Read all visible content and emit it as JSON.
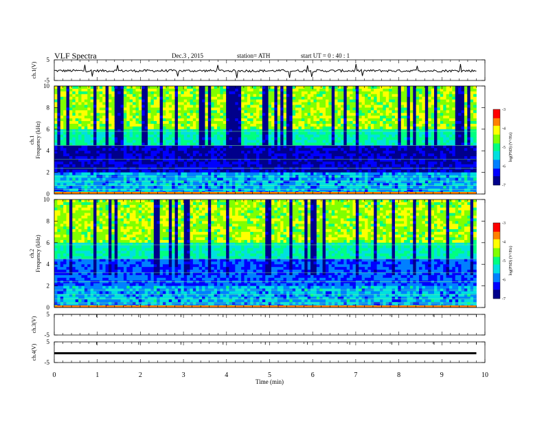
{
  "header": {
    "title": "VLF  Spectra",
    "date": "Dec.3  , 2015",
    "station": "station= ATH",
    "start": "start  UT  =   0 : 40 : 1"
  },
  "chart_data": [
    {
      "type": "line",
      "panel": "ch1-waveform",
      "ylabel": "ch.1(V)",
      "ylim": [
        -5,
        5
      ],
      "yticks": [
        "5",
        "-5"
      ],
      "series": [
        {
          "name": "",
          "x": [
            0,
            9.8
          ],
          "values": [
            -0.3,
            -0.3
          ]
        }
      ],
      "line_color": "#000000"
    },
    {
      "type": "heatmap",
      "panel": "ch1-spectrogram",
      "ylabel": "ch.1\nFrequency (kHz)",
      "ylim": [
        0,
        10
      ],
      "yticks": [
        "0",
        "2",
        "4",
        "6",
        "8",
        "10"
      ],
      "xlim": [
        0,
        9.8
      ],
      "colorbar": {
        "label": "log(PSD) (V²/Hz)",
        "ticks": [
          "-3",
          "-4",
          "-5",
          "-6",
          "-7"
        ],
        "range": [
          -7,
          -3
        ]
      }
    },
    {
      "type": "heatmap",
      "panel": "ch2-spectrogram",
      "ylabel": "ch.2\nFrequency (kHz)",
      "ylim": [
        0,
        10
      ],
      "yticks": [
        "0",
        "2",
        "4",
        "6",
        "8",
        "10"
      ],
      "xlim": [
        0,
        9.8
      ],
      "colorbar": {
        "label": "log(PSD) (V²/Hz)",
        "ticks": [
          "-3",
          "-4",
          "-5",
          "-6",
          "-7"
        ],
        "range": [
          -7,
          -3
        ]
      }
    },
    {
      "type": "line",
      "panel": "ch3-waveform",
      "ylabel": "ch.3(V)",
      "ylim": [
        -5,
        5
      ],
      "yticks": [
        "5",
        "-5"
      ],
      "series": [
        {
          "name": "",
          "x": [
            0,
            9.8
          ],
          "values": [
            5,
            5
          ]
        }
      ]
    },
    {
      "type": "line",
      "panel": "ch4-waveform",
      "ylabel": "ch.4(V)",
      "ylim": [
        -5,
        5
      ],
      "yticks": [
        "5",
        "-5"
      ],
      "series": [
        {
          "name": "",
          "x": [
            0,
            9.8
          ],
          "values": [
            -0.5,
            -0.5
          ]
        }
      ]
    }
  ],
  "xaxis": {
    "label": "Time  (min)",
    "ticks": [
      "0",
      "1",
      "2",
      "3",
      "4",
      "5",
      "6",
      "7",
      "8",
      "9",
      "10"
    ],
    "range": [
      0,
      10
    ]
  },
  "colormap": [
    "#000000",
    "#00008b",
    "#0000ff",
    "#0080ff",
    "#00e0e0",
    "#00ff80",
    "#80ff00",
    "#ffff00",
    "#ff8000",
    "#ff0000",
    "#ffffff"
  ]
}
